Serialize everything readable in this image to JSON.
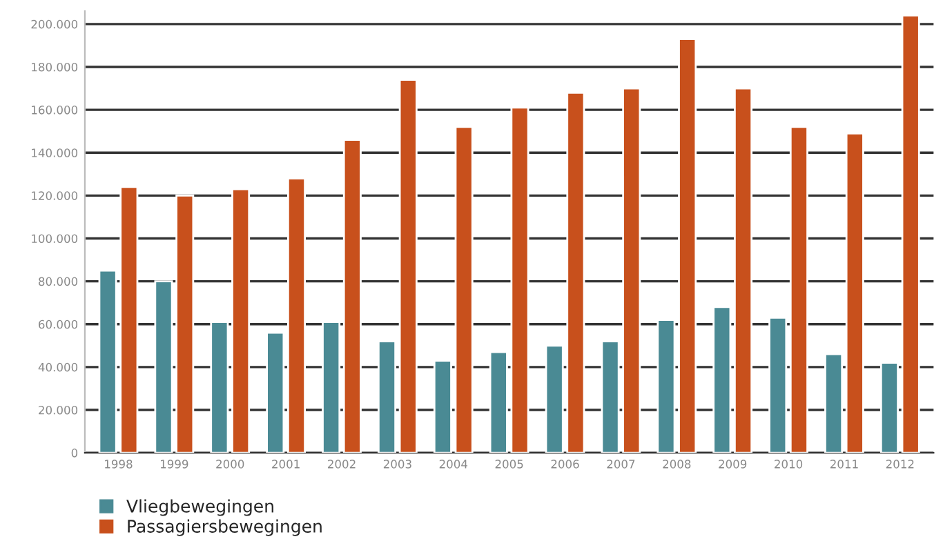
{
  "chart_data": {
    "type": "bar",
    "categories": [
      "1998",
      "1999",
      "2000",
      "2001",
      "2002",
      "2003",
      "2004",
      "2005",
      "2006",
      "2007",
      "2008",
      "2009",
      "2010",
      "2011",
      "2012"
    ],
    "series": [
      {
        "name": "Vliegbewegingen",
        "color": "#4a8a94",
        "values": [
          85000,
          80000,
          61000,
          56000,
          61000,
          52000,
          43000,
          47000,
          50000,
          52000,
          62000,
          68000,
          63000,
          46000,
          42000
        ]
      },
      {
        "name": "Passagiersbewegingen",
        "color": "#c8501c",
        "values": [
          124000,
          120000,
          123000,
          128000,
          146000,
          174000,
          152000,
          161000,
          168000,
          170000,
          193000,
          170000,
          152000,
          149000,
          204000
        ]
      }
    ],
    "ylim": [
      0,
      206000
    ],
    "yticks": [
      {
        "value": 0,
        "label": "0"
      },
      {
        "value": 20000,
        "label": "20.000"
      },
      {
        "value": 40000,
        "label": "40.000"
      },
      {
        "value": 60000,
        "label": "60.000"
      },
      {
        "value": 80000,
        "label": "80.000"
      },
      {
        "value": 100000,
        "label": "100.000"
      },
      {
        "value": 120000,
        "label": "120.000"
      },
      {
        "value": 140000,
        "label": "140.000"
      },
      {
        "value": 160000,
        "label": "160.000"
      },
      {
        "value": 180000,
        "label": "180.000"
      },
      {
        "value": 200000,
        "label": "200.000"
      }
    ],
    "grid": "y",
    "legend": "bottom left"
  }
}
